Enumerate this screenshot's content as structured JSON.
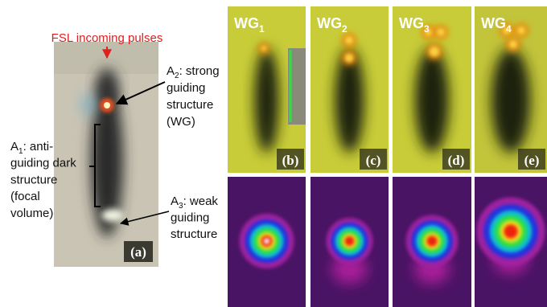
{
  "figure": {
    "title": "FSL incoming pulses",
    "annotations": [
      {
        "letter": "A",
        "sub": "2",
        "lines": [
          ": strong",
          "guiding",
          "structure",
          "(WG)"
        ]
      },
      {
        "letter": "A",
        "sub": "1",
        "lines": [
          ": anti-",
          "guiding dark",
          "structure",
          "(focal",
          "volume)"
        ]
      },
      {
        "letter": "A",
        "sub": "3",
        "lines": [
          ": weak",
          "guiding",
          "structure"
        ]
      }
    ],
    "panel_labels": [
      "(a)",
      "(b)",
      "(c)",
      "(d)",
      "(e)"
    ],
    "waveguides": [
      {
        "letter": "WG",
        "sub": "1"
      },
      {
        "letter": "WG",
        "sub": "2"
      },
      {
        "letter": "WG",
        "sub": "3"
      },
      {
        "letter": "WG",
        "sub": "4"
      }
    ]
  }
}
